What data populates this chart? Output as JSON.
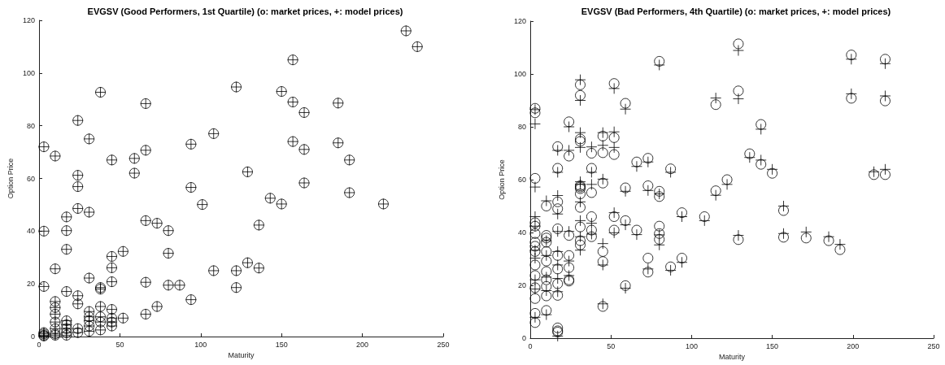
{
  "chart_data": [
    {
      "type": "scatter",
      "title": "EVGSV (Good Performers, 1st Quartile) (o: market prices, +: model prices)",
      "xlabel": "Maturity",
      "ylabel": "Option Price",
      "xlim": [
        0,
        250
      ],
      "xticks": [
        0,
        50,
        100,
        150,
        200,
        250
      ],
      "ylim": [
        0,
        120
      ],
      "yticks": [
        0,
        20,
        40,
        60,
        80,
        100,
        120
      ],
      "series": [
        {
          "marker": "circle",
          "color": "#000000",
          "x": [
            3,
            3,
            3,
            3,
            3,
            3,
            3,
            10,
            10,
            10,
            10,
            10,
            10,
            10,
            10,
            10,
            17,
            17,
            17,
            17,
            17,
            17,
            17,
            17,
            17,
            24,
            24,
            24,
            24,
            24,
            24,
            24,
            24,
            31,
            31,
            31,
            31,
            31,
            31,
            31,
            31,
            38,
            38,
            38,
            38,
            38,
            38,
            38,
            45,
            45,
            45,
            45,
            45,
            45,
            45,
            45,
            52,
            52,
            59,
            59,
            66,
            66,
            66,
            66,
            66,
            73,
            73,
            80,
            80,
            80,
            87,
            94,
            94,
            94,
            101,
            108,
            108,
            122,
            122,
            122,
            129,
            129,
            136,
            136,
            143,
            150,
            150,
            157,
            157,
            157,
            164,
            164,
            164,
            185,
            185,
            192,
            192,
            213,
            227,
            234
          ],
          "values": [
            72,
            40,
            19,
            1.5,
            1,
            0.5,
            0.2,
            68.5,
            25.7,
            13.3,
            11,
            8.5,
            5.5,
            3,
            1,
            0.5,
            45.4,
            40.2,
            33.1,
            17.1,
            6,
            4.5,
            3,
            1.5,
            0.5,
            82,
            61.2,
            56.9,
            48.6,
            15.5,
            12.4,
            3,
            1.5,
            75,
            47.2,
            22.2,
            9.5,
            7.5,
            6,
            4,
            2,
            92.7,
            18.6,
            18,
            11.4,
            7.5,
            5.5,
            2.5,
            67,
            30.4,
            26.1,
            20.8,
            10.3,
            7,
            5.5,
            4,
            32.3,
            7,
            67.6,
            62,
            88.4,
            70.7,
            44,
            20.6,
            8.5,
            43,
            11.4,
            40.2,
            31.6,
            19.5,
            19.5,
            73,
            56.6,
            14,
            50.1,
            77,
            25,
            94.7,
            25,
            18.6,
            62.5,
            28,
            42.3,
            26,
            52.5,
            93,
            50.3,
            105,
            89,
            74,
            85,
            71,
            58.3,
            88.6,
            73.5,
            67,
            54.6,
            50.3,
            116,
            110
          ]
        },
        {
          "marker": "cross",
          "color": "#000000",
          "x": [
            3,
            3,
            3,
            3,
            3,
            3,
            3,
            10,
            10,
            10,
            10,
            10,
            10,
            10,
            10,
            10,
            17,
            17,
            17,
            17,
            17,
            17,
            17,
            17,
            17,
            24,
            24,
            24,
            24,
            24,
            24,
            24,
            24,
            31,
            31,
            31,
            31,
            31,
            31,
            31,
            31,
            38,
            38,
            38,
            38,
            38,
            38,
            38,
            45,
            45,
            45,
            45,
            45,
            45,
            45,
            45,
            52,
            52,
            59,
            59,
            66,
            66,
            66,
            66,
            66,
            73,
            73,
            80,
            80,
            80,
            87,
            94,
            94,
            94,
            101,
            108,
            108,
            122,
            122,
            122,
            129,
            129,
            136,
            136,
            143,
            150,
            150,
            157,
            157,
            157,
            164,
            164,
            164,
            185,
            185,
            192,
            192,
            213,
            227,
            234
          ],
          "values": [
            72,
            40,
            19,
            1.5,
            1,
            0.5,
            0.2,
            68.5,
            25.7,
            13.3,
            11,
            8.5,
            5.5,
            3,
            1,
            0.5,
            45.4,
            40.2,
            33.1,
            17.1,
            6,
            4.5,
            3,
            1.5,
            0.5,
            82,
            61.2,
            56.9,
            48.6,
            15.5,
            12.4,
            3,
            1.5,
            75,
            47.2,
            22.2,
            9.5,
            7.5,
            6,
            4,
            2,
            92.7,
            18.6,
            18,
            11.4,
            7.5,
            5.5,
            2.5,
            67,
            30.4,
            26.1,
            20.8,
            10.3,
            7,
            5.5,
            4,
            32.3,
            7,
            67.6,
            62,
            88.4,
            70.7,
            44,
            20.6,
            8.5,
            43,
            11.4,
            40.2,
            31.6,
            19.5,
            19.5,
            73,
            56.6,
            14,
            50.1,
            77,
            25,
            94.7,
            25,
            18.6,
            62.5,
            28,
            42.3,
            26,
            52.5,
            93,
            50.3,
            105,
            89,
            74,
            85,
            71,
            58.3,
            88.6,
            73.5,
            67,
            54.6,
            50.3,
            116,
            110
          ]
        }
      ]
    },
    {
      "type": "scatter",
      "title": "EVGSV (Bad Performers, 4th Quartile) (o: market prices, +: model prices)",
      "xlabel": "Maturity",
      "ylabel": "Option Price",
      "xlim": [
        0,
        250
      ],
      "xticks": [
        0,
        50,
        100,
        150,
        200,
        250
      ],
      "ylim": [
        0,
        120
      ],
      "yticks": [
        0,
        20,
        40,
        60,
        80,
        100,
        120
      ],
      "series": [
        {
          "marker": "circle",
          "color": "#000000",
          "x": [
            3,
            3,
            3,
            3,
            3,
            3,
            3,
            3,
            3,
            3,
            3,
            3,
            3,
            3,
            3,
            10,
            10,
            10,
            10,
            10,
            10,
            10,
            10,
            10,
            10,
            10,
            17,
            17,
            17,
            17,
            17,
            17,
            17,
            17,
            17,
            17,
            17,
            17,
            24,
            24,
            24,
            24,
            24,
            24,
            24,
            31,
            31,
            31,
            31,
            31,
            31,
            31,
            31,
            31,
            31,
            31,
            31,
            38,
            38,
            38,
            38,
            38,
            38,
            45,
            45,
            45,
            45,
            45,
            45,
            52,
            52,
            52,
            52,
            52,
            59,
            59,
            59,
            59,
            66,
            66,
            73,
            73,
            73,
            73,
            80,
            80,
            80,
            80,
            80,
            80,
            87,
            87,
            94,
            94,
            108,
            115,
            115,
            122,
            129,
            129,
            129,
            136,
            143,
            143,
            150,
            157,
            157,
            171,
            185,
            192,
            199,
            199,
            213,
            220,
            220,
            220
          ],
          "values": [
            87,
            85.3,
            60.5,
            43.7,
            42.4,
            39.6,
            36.3,
            34.8,
            32.8,
            27.7,
            23.7,
            19.1,
            15,
            9.4,
            5.9,
            50,
            38.9,
            37.9,
            36.3,
            32.8,
            29.2,
            25.2,
            22.1,
            19.6,
            16,
            10.5,
            72.5,
            64.3,
            51.6,
            49,
            41.4,
            31.3,
            26.2,
            20.6,
            16.2,
            3.9,
            2.8,
            2.3,
            81.9,
            68.9,
            38.9,
            31.3,
            26.7,
            22.1,
            21.6,
            95.9,
            91.9,
            75.4,
            74.5,
            57.7,
            57.2,
            56.6,
            54.6,
            49.5,
            42.1,
            36.9,
            35.3,
            70,
            64.3,
            55.1,
            46,
            40.9,
            38.4,
            76.5,
            70.2,
            58.7,
            32.8,
            29,
            12,
            96.4,
            75.9,
            69.5,
            46,
            40.9,
            88.9,
            56.9,
            44.5,
            19.9,
            66.7,
            40.9,
            68.1,
            57.7,
            30.3,
            25,
            104.8,
            55.6,
            53.6,
            42.4,
            39.6,
            37.4,
            64.1,
            27,
            47.5,
            30.3,
            46,
            88.4,
            55.8,
            60,
            111.4,
            93.6,
            37.3,
            69.8,
            80.9,
            65.8,
            62.4,
            48.3,
            38.2,
            37.9,
            36.9,
            33.5,
            107.2,
            90.8,
            61.9,
            105.6,
            89.8,
            61.9
          ]
        },
        {
          "marker": "cross",
          "color": "#000000",
          "x": [
            3,
            3,
            3,
            3,
            3,
            3,
            3,
            3,
            3,
            3,
            10,
            10,
            10,
            10,
            10,
            10,
            17,
            17,
            17,
            17,
            17,
            17,
            17,
            17,
            17,
            17,
            24,
            24,
            24,
            24,
            24,
            31,
            31,
            31,
            31,
            31,
            31,
            31,
            31,
            31,
            31,
            38,
            38,
            38,
            38,
            38,
            45,
            45,
            45,
            45,
            45,
            45,
            52,
            52,
            52,
            52,
            52,
            59,
            59,
            59,
            59,
            66,
            66,
            73,
            73,
            73,
            80,
            80,
            80,
            80,
            87,
            87,
            94,
            94,
            108,
            115,
            115,
            122,
            129,
            129,
            129,
            136,
            143,
            143,
            150,
            157,
            157,
            171,
            185,
            192,
            199,
            199,
            213,
            220,
            220,
            220
          ],
          "values": [
            86.5,
            81.1,
            57.2,
            46,
            42.4,
            33.3,
            30.3,
            22.1,
            18.6,
            7.9,
            52,
            36.9,
            31.3,
            23.1,
            18,
            8.9,
            71.1,
            62.8,
            54,
            47,
            40.4,
            32.8,
            27.7,
            22.6,
            17.6,
            0.8,
            80,
            71.1,
            40.4,
            29.2,
            23.7,
            97.8,
            90,
            77.8,
            72.2,
            59.2,
            58.2,
            51.6,
            44.5,
            38.4,
            33.3,
            72.4,
            62.8,
            58.2,
            43.5,
            39.4,
            77.8,
            73,
            60.2,
            35.8,
            27.7,
            13,
            94.5,
            78.1,
            72.2,
            47.5,
            39.9,
            86.7,
            55.6,
            42.9,
            18.9,
            65,
            39.2,
            66.7,
            55.9,
            26.2,
            103.4,
            54.6,
            39.1,
            35.3,
            62.8,
            25.7,
            46,
            28.7,
            44.5,
            90.9,
            54.1,
            58.2,
            108.9,
            90.6,
            38.9,
            68.4,
            79.1,
            67.4,
            63.9,
            50,
            39.6,
            40.2,
            38.4,
            35.5,
            105.6,
            92.5,
            63,
            103.9,
            91.7,
            63.9
          ]
        }
      ]
    }
  ]
}
